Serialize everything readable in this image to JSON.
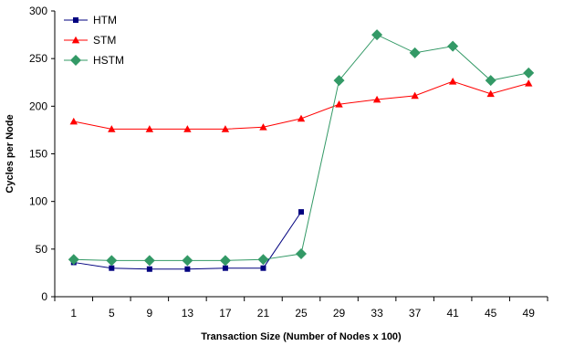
{
  "chart_data": {
    "type": "line",
    "title": "",
    "xlabel": "Transaction Size (Number of Nodes x 100)",
    "ylabel": "Cycles per Node",
    "categories": [
      "1",
      "5",
      "9",
      "13",
      "17",
      "21",
      "25",
      "29",
      "33",
      "37",
      "41",
      "45",
      "49"
    ],
    "ylim": [
      0,
      300
    ],
    "yticks": [
      0,
      50,
      100,
      150,
      200,
      250,
      300
    ],
    "grid": false,
    "legend_position": "top-left",
    "series": [
      {
        "name": "HTM",
        "color": "#00007f",
        "marker": "square",
        "values": [
          36,
          30,
          29,
          29,
          30,
          30,
          89,
          null,
          null,
          null,
          null,
          null,
          null
        ]
      },
      {
        "name": "STM",
        "color": "#ff0000",
        "marker": "triangle",
        "values": [
          184,
          176,
          176,
          176,
          176,
          178,
          187,
          202,
          207,
          211,
          226,
          213,
          224
        ]
      },
      {
        "name": "HSTM",
        "color": "#339966",
        "marker": "diamond",
        "values": [
          39,
          38,
          38,
          38,
          38,
          39,
          45,
          227,
          275,
          256,
          263,
          227,
          235
        ]
      }
    ]
  }
}
